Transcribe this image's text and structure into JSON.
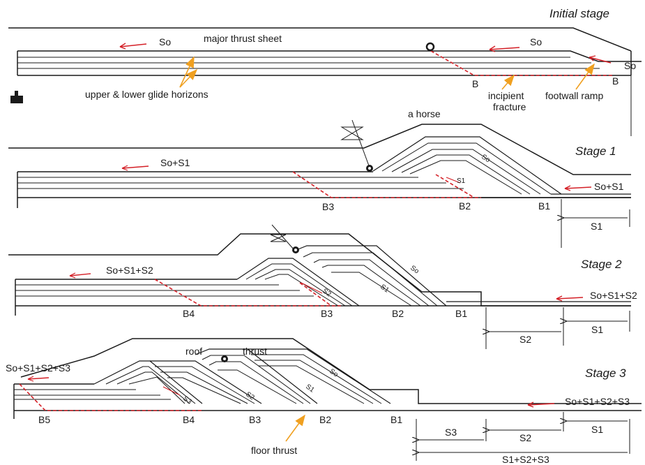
{
  "colors": {
    "line": "#1a1a1a",
    "accent_red": "#d42027",
    "accent_orange": "#f0a020"
  },
  "stages": {
    "initial": "Initial stage",
    "s1": "Stage 1",
    "s2": "Stage 2",
    "s3": "Stage 3"
  },
  "labels": {
    "so_left": "So",
    "major_thrust_sheet": "major thrust sheet",
    "so_mid": "So",
    "so_right": "So",
    "glide_horizons": "upper & lower glide horizons",
    "b_left": "B",
    "b_right": "B",
    "incipient_fracture": [
      "incipient",
      "fracture"
    ],
    "footwall_ramp": "footwall ramp",
    "a_horse": "a horse",
    "s1_left": "So+S1",
    "s1_so_in_horse": "So",
    "s1_s1_in_horse": "S1",
    "s1_right": "So+S1",
    "s1_b3": "B3",
    "s1_b2": "B2",
    "s1_b1": "B1",
    "s1_shortening": "S1",
    "s2_left": "So+S1+S2",
    "s2_so": "So",
    "s2_s1": "S1",
    "s2_s2": "S2",
    "s2_right": "So+S1+S2",
    "s2_b4": "B4",
    "s2_b3": "B3",
    "s2_b2": "B2",
    "s2_b1": "B1",
    "s2_short_s2": "S2",
    "s2_short_s1": "S1",
    "roof": "roof",
    "thrust": "thrust",
    "s3_left": "So+S1+S2+S3",
    "s3_so": "So",
    "s3_s1": "S1",
    "s3_s2": "S2",
    "s3_s3": "S3",
    "s3_right": "So+S1+S2+S3",
    "s3_b5": "B5",
    "s3_b4": "B4",
    "s3_b3": "B3",
    "s3_b2": "B2",
    "s3_b1": "B1",
    "floor_thrust": "floor thrust",
    "s3_short_s3": "S3",
    "s3_short_s2": "S2",
    "s3_short_s1": "S1",
    "s3_total": "S1+S2+S3"
  }
}
